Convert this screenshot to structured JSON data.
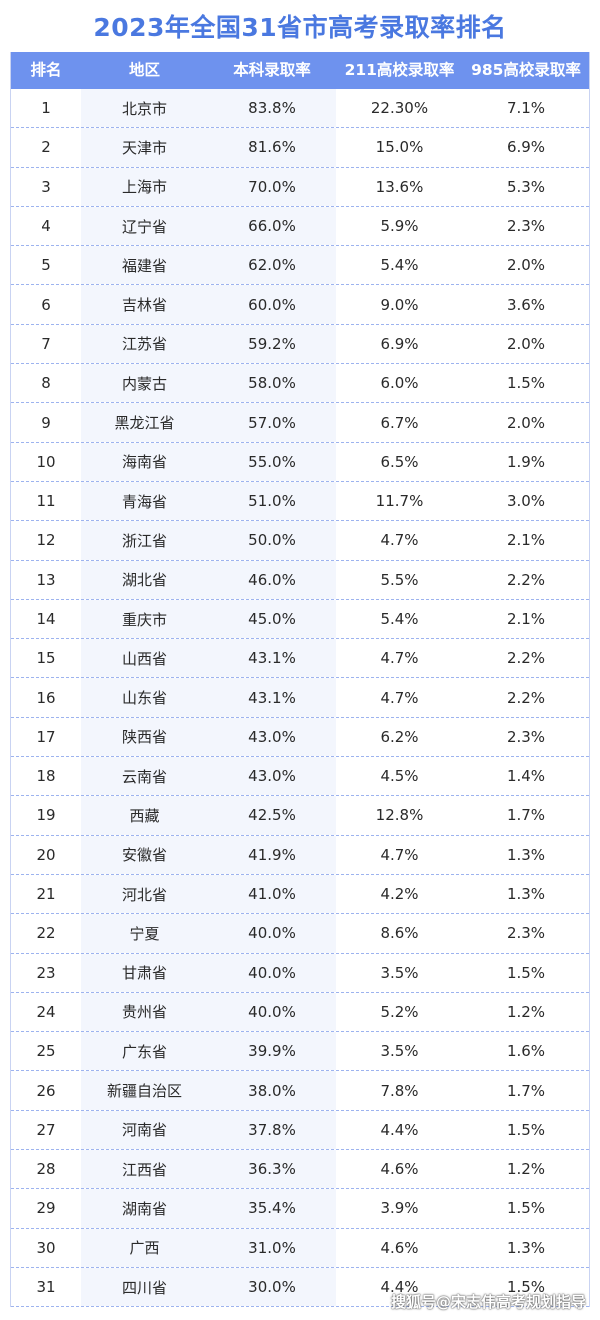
{
  "chart_data": {
    "type": "table",
    "title": "2023年全国31省市高考录取率排名",
    "columns": [
      "排名",
      "地区",
      "本科录取率",
      "211高校录取率",
      "985高校录取率"
    ],
    "rows": [
      [
        "1",
        "北京市",
        "83.8%",
        "22.30%",
        "7.1%"
      ],
      [
        "2",
        "天津市",
        "81.6%",
        "15.0%",
        "6.9%"
      ],
      [
        "3",
        "上海市",
        "70.0%",
        "13.6%",
        "5.3%"
      ],
      [
        "4",
        "辽宁省",
        "66.0%",
        "5.9%",
        "2.3%"
      ],
      [
        "5",
        "福建省",
        "62.0%",
        "5.4%",
        "2.0%"
      ],
      [
        "6",
        "吉林省",
        "60.0%",
        "9.0%",
        "3.6%"
      ],
      [
        "7",
        "江苏省",
        "59.2%",
        "6.9%",
        "2.0%"
      ],
      [
        "8",
        "内蒙古",
        "58.0%",
        "6.0%",
        "1.5%"
      ],
      [
        "9",
        "黑龙江省",
        "57.0%",
        "6.7%",
        "2.0%"
      ],
      [
        "10",
        "海南省",
        "55.0%",
        "6.5%",
        "1.9%"
      ],
      [
        "11",
        "青海省",
        "51.0%",
        "11.7%",
        "3.0%"
      ],
      [
        "12",
        "浙江省",
        "50.0%",
        "4.7%",
        "2.1%"
      ],
      [
        "13",
        "湖北省",
        "46.0%",
        "5.5%",
        "2.2%"
      ],
      [
        "14",
        "重庆市",
        "45.0%",
        "5.4%",
        "2.1%"
      ],
      [
        "15",
        "山西省",
        "43.1%",
        "4.7%",
        "2.2%"
      ],
      [
        "16",
        "山东省",
        "43.1%",
        "4.7%",
        "2.2%"
      ],
      [
        "17",
        "陕西省",
        "43.0%",
        "6.2%",
        "2.3%"
      ],
      [
        "18",
        "云南省",
        "43.0%",
        "4.5%",
        "1.4%"
      ],
      [
        "19",
        "西藏",
        "42.5%",
        "12.8%",
        "1.7%"
      ],
      [
        "20",
        "安徽省",
        "41.9%",
        "4.7%",
        "1.3%"
      ],
      [
        "21",
        "河北省",
        "41.0%",
        "4.2%",
        "1.3%"
      ],
      [
        "22",
        "宁夏",
        "40.0%",
        "8.6%",
        "2.3%"
      ],
      [
        "23",
        "甘肃省",
        "40.0%",
        "3.5%",
        "1.5%"
      ],
      [
        "24",
        "贵州省",
        "40.0%",
        "5.2%",
        "1.2%"
      ],
      [
        "25",
        "广东省",
        "39.9%",
        "3.5%",
        "1.6%"
      ],
      [
        "26",
        "新疆自治区",
        "38.0%",
        "7.8%",
        "1.7%"
      ],
      [
        "27",
        "河南省",
        "37.8%",
        "4.4%",
        "1.5%"
      ],
      [
        "28",
        "江西省",
        "36.3%",
        "4.6%",
        "1.2%"
      ],
      [
        "29",
        "湖南省",
        "35.4%",
        "3.9%",
        "1.5%"
      ],
      [
        "30",
        "广西",
        "31.0%",
        "4.6%",
        "1.3%"
      ],
      [
        "31",
        "四川省",
        "30.0%",
        "4.4%",
        "1.5%"
      ]
    ]
  },
  "watermark": "搜狐号@宋志伟高考规划指导",
  "colors": {
    "title": "#4a78e0",
    "header_bg": "#6e92ee",
    "row_divider": "#9db3ef"
  }
}
